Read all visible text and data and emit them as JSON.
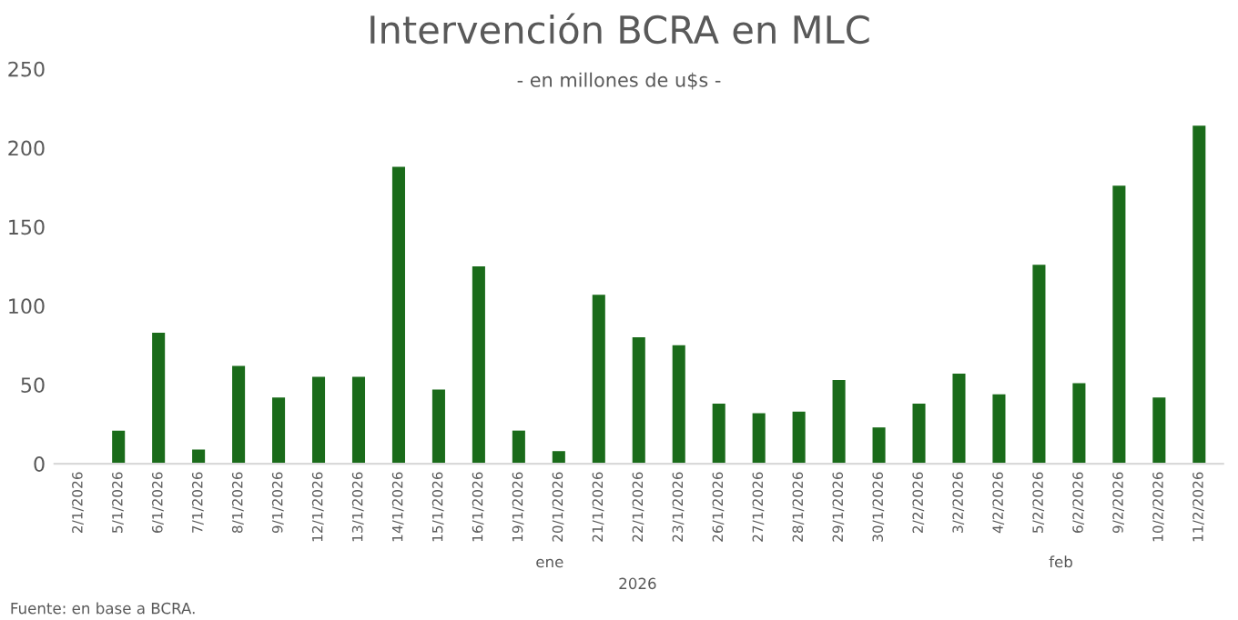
{
  "chart_data": {
    "type": "bar",
    "title": "Intervención BCRA en MLC",
    "subtitle": "- en millones de u$s -",
    "categories": [
      "2/1/2026",
      "5/1/2026",
      "6/1/2026",
      "7/1/2026",
      "8/1/2026",
      "9/1/2026",
      "12/1/2026",
      "13/1/2026",
      "14/1/2026",
      "15/1/2026",
      "16/1/2026",
      "19/1/2026",
      "20/1/2026",
      "21/1/2026",
      "22/1/2026",
      "23/1/2026",
      "26/1/2026",
      "27/1/2026",
      "28/1/2026",
      "29/1/2026",
      "30/1/2026",
      "2/2/2026",
      "3/2/2026",
      "4/2/2026",
      "5/2/2026",
      "6/2/2026",
      "9/2/2026",
      "10/2/2026",
      "11/2/2026"
    ],
    "values": [
      0,
      21,
      83,
      9,
      62,
      42,
      55,
      55,
      188,
      47,
      125,
      21,
      8,
      107,
      80,
      75,
      38,
      32,
      33,
      53,
      23,
      38,
      57,
      44,
      126,
      51,
      176,
      42,
      214
    ],
    "color": "#1a6b1a",
    "ylim": [
      0,
      250
    ],
    "yticks": [
      0,
      50,
      100,
      150,
      200,
      250
    ],
    "grid": false,
    "annotations": [
      "ene",
      "feb",
      "2026",
      "Fuente: en base a BCRA."
    ]
  }
}
